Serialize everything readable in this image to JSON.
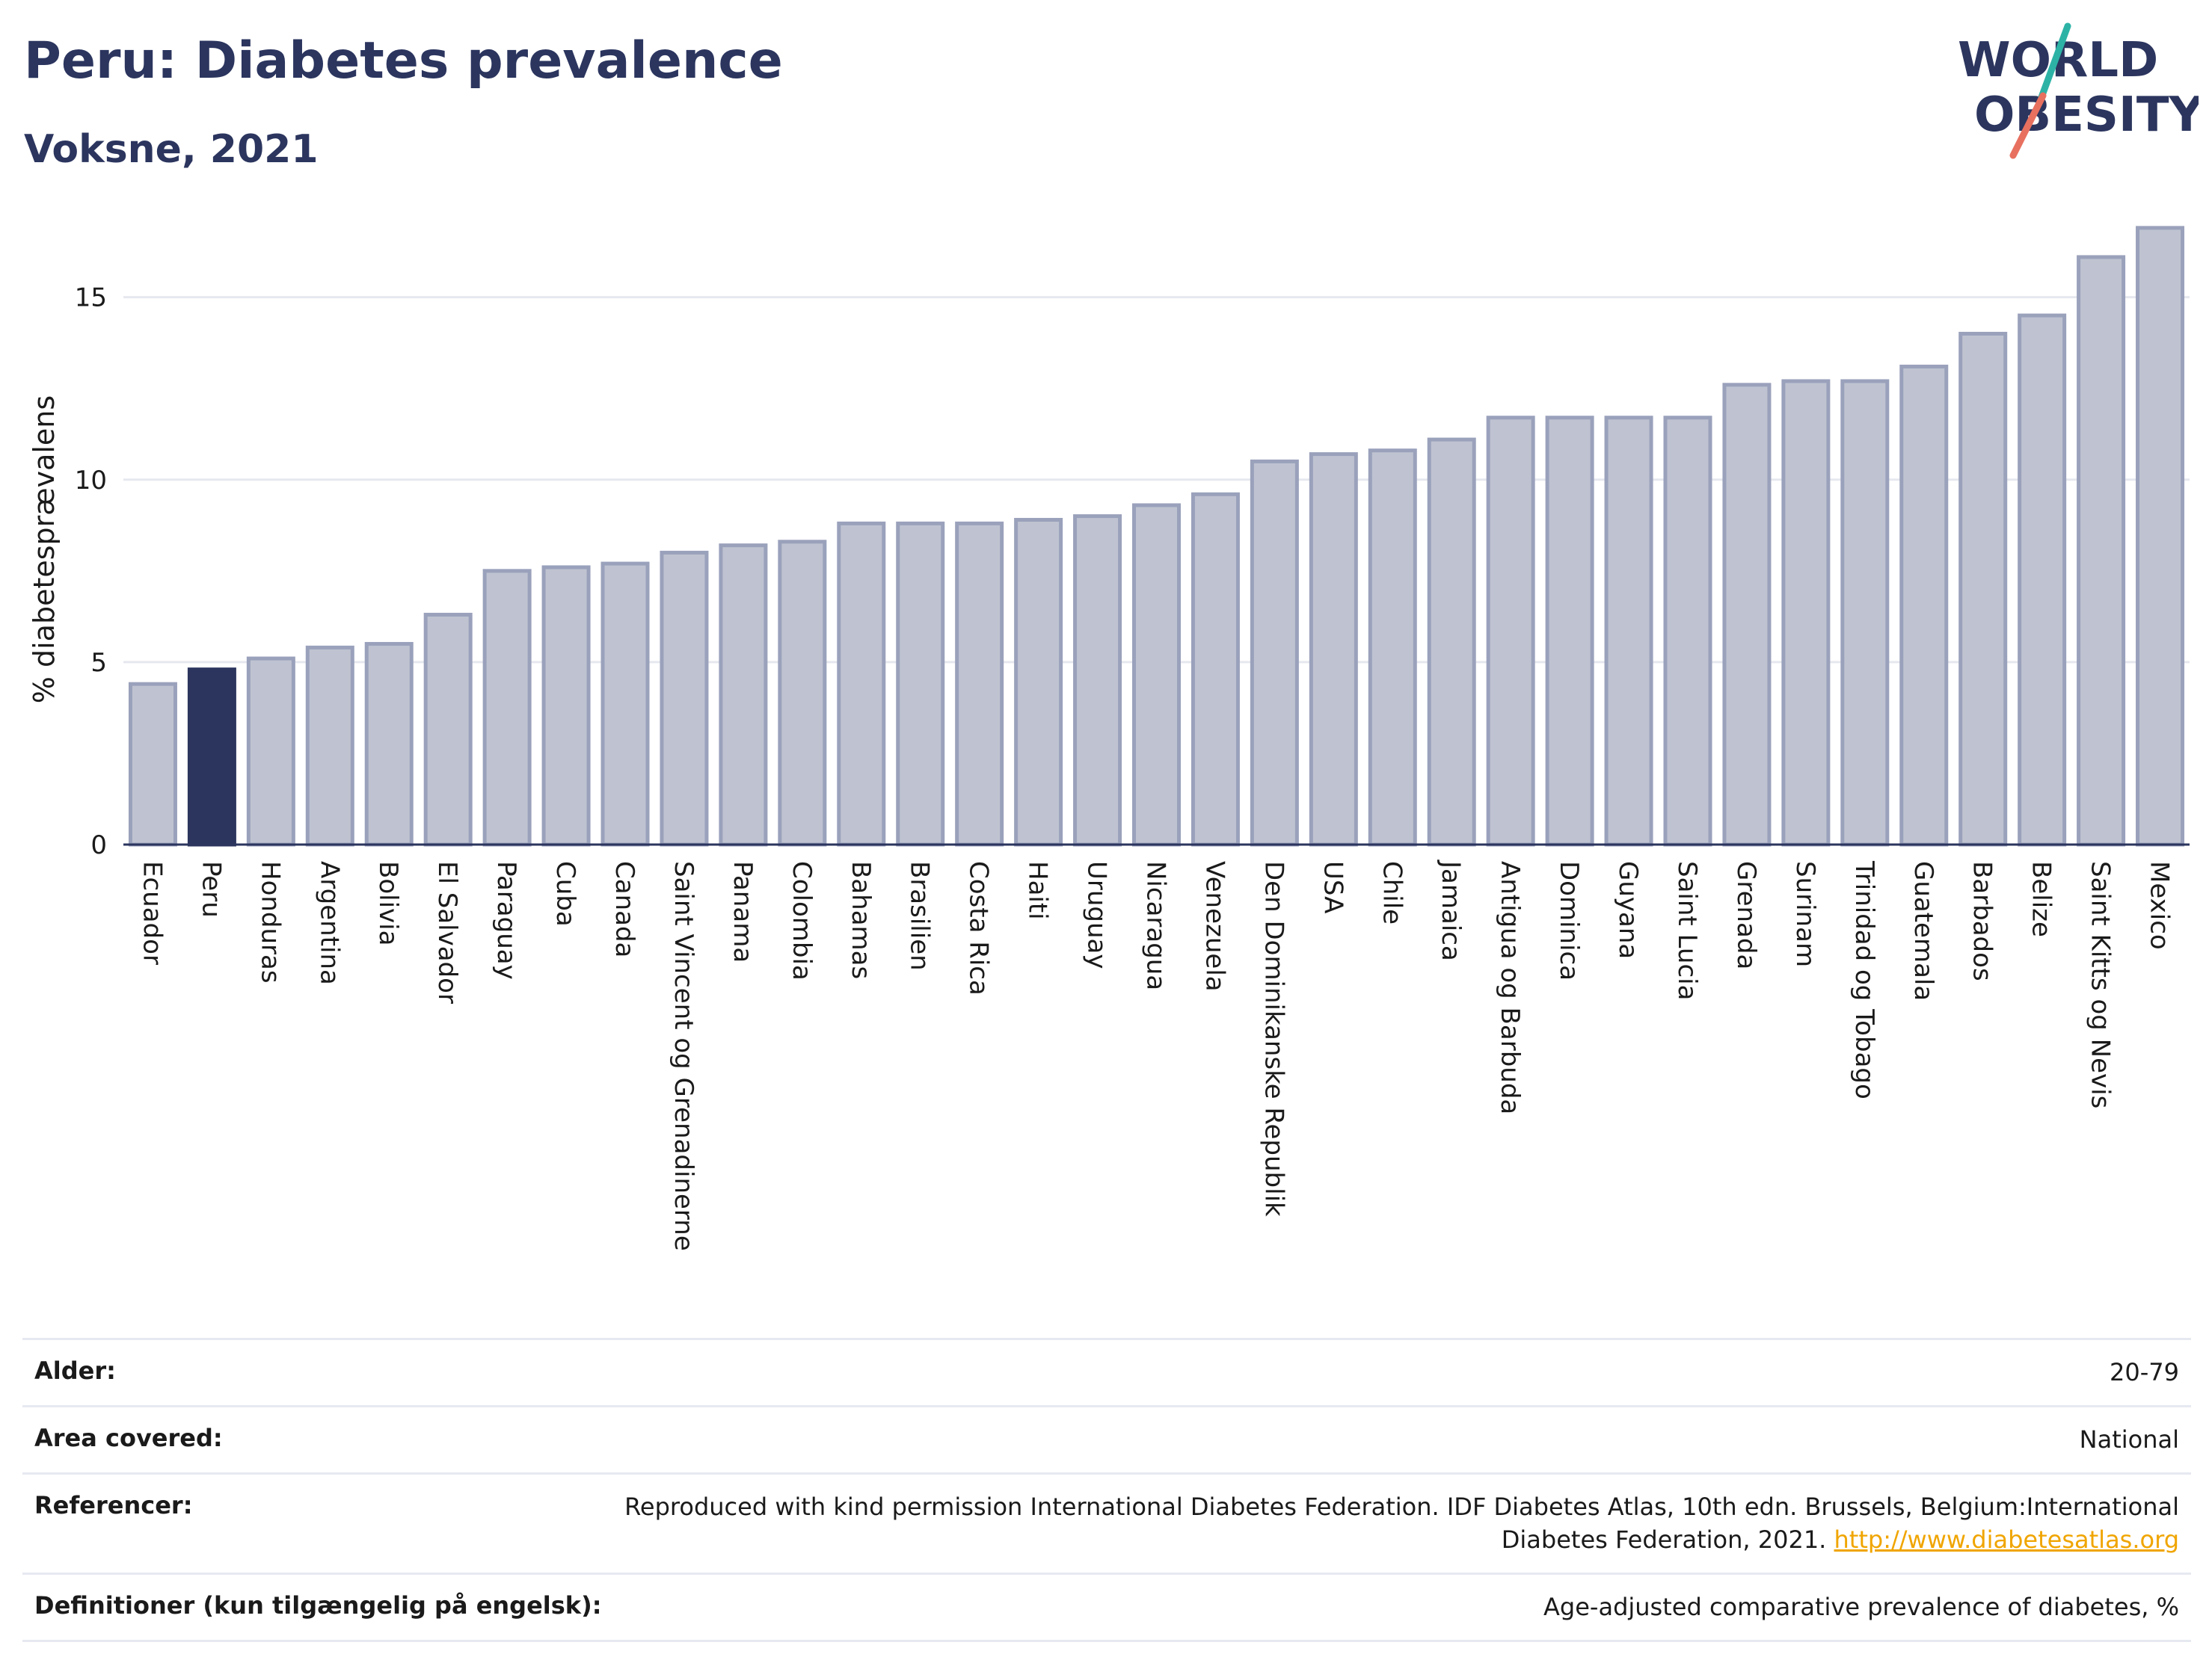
{
  "header": {
    "title": "Peru: Diabetes prevalence",
    "subtitle": "Voksne, 2021"
  },
  "logo": {
    "line1": "WORLD",
    "line2": "OBESITY"
  },
  "chart_data": {
    "type": "bar",
    "categories": [
      "Ecuador",
      "Peru",
      "Honduras",
      "Argentina",
      "Bolivia",
      "El Salvador",
      "Paraguay",
      "Cuba",
      "Canada",
      "Saint Vincent og Grenadinerne",
      "Panama",
      "Colombia",
      "Bahamas",
      "Brasilien",
      "Costa Rica",
      "Haiti",
      "Uruguay",
      "Nicaragua",
      "Venezuela",
      "Den Dominikanske Republik",
      "USA",
      "Chile",
      "Jamaica",
      "Antigua og Barbuda",
      "Dominica",
      "Guyana",
      "Saint Lucia",
      "Grenada",
      "Surinam",
      "Trinidad og Tobago",
      "Guatemala",
      "Barbados",
      "Belize",
      "Saint Kitts og Nevis",
      "Mexico"
    ],
    "values": [
      4.4,
      4.8,
      5.1,
      5.4,
      5.5,
      6.3,
      7.5,
      7.6,
      7.7,
      8.0,
      8.2,
      8.3,
      8.8,
      8.8,
      8.8,
      8.9,
      9.0,
      9.3,
      9.6,
      10.5,
      10.7,
      10.8,
      11.1,
      11.7,
      11.7,
      11.7,
      11.7,
      12.6,
      12.7,
      12.7,
      13.1,
      14.0,
      14.5,
      16.1,
      16.9
    ],
    "highlight": "Peru",
    "ylabel": "% diabetesprævalens",
    "ylim": [
      0,
      17
    ],
    "yticks": [
      0,
      5,
      10,
      15
    ],
    "grid": true,
    "colors": {
      "bar": "#bfc3d1",
      "bar_border": "#9aa1bb",
      "highlight": "#2b355e",
      "grid": "#e6e8ef",
      "axis": "#2b355e"
    }
  },
  "meta": {
    "rows": [
      {
        "label": "Alder:",
        "value": "20-79"
      },
      {
        "label": "Area covered:",
        "value": "National"
      },
      {
        "label": "Referencer:",
        "value": "Reproduced with kind permission International Diabetes Federation.  IDF Diabetes Atlas, 10th edn. Brussels, Belgium:International Diabetes Federation, 2021.",
        "link": "http://www.diabetesatlas.org"
      },
      {
        "label": "Definitioner (kun tilgængelig på engelsk):",
        "value": "Age-adjusted comparative prevalence of diabetes, %"
      }
    ]
  }
}
